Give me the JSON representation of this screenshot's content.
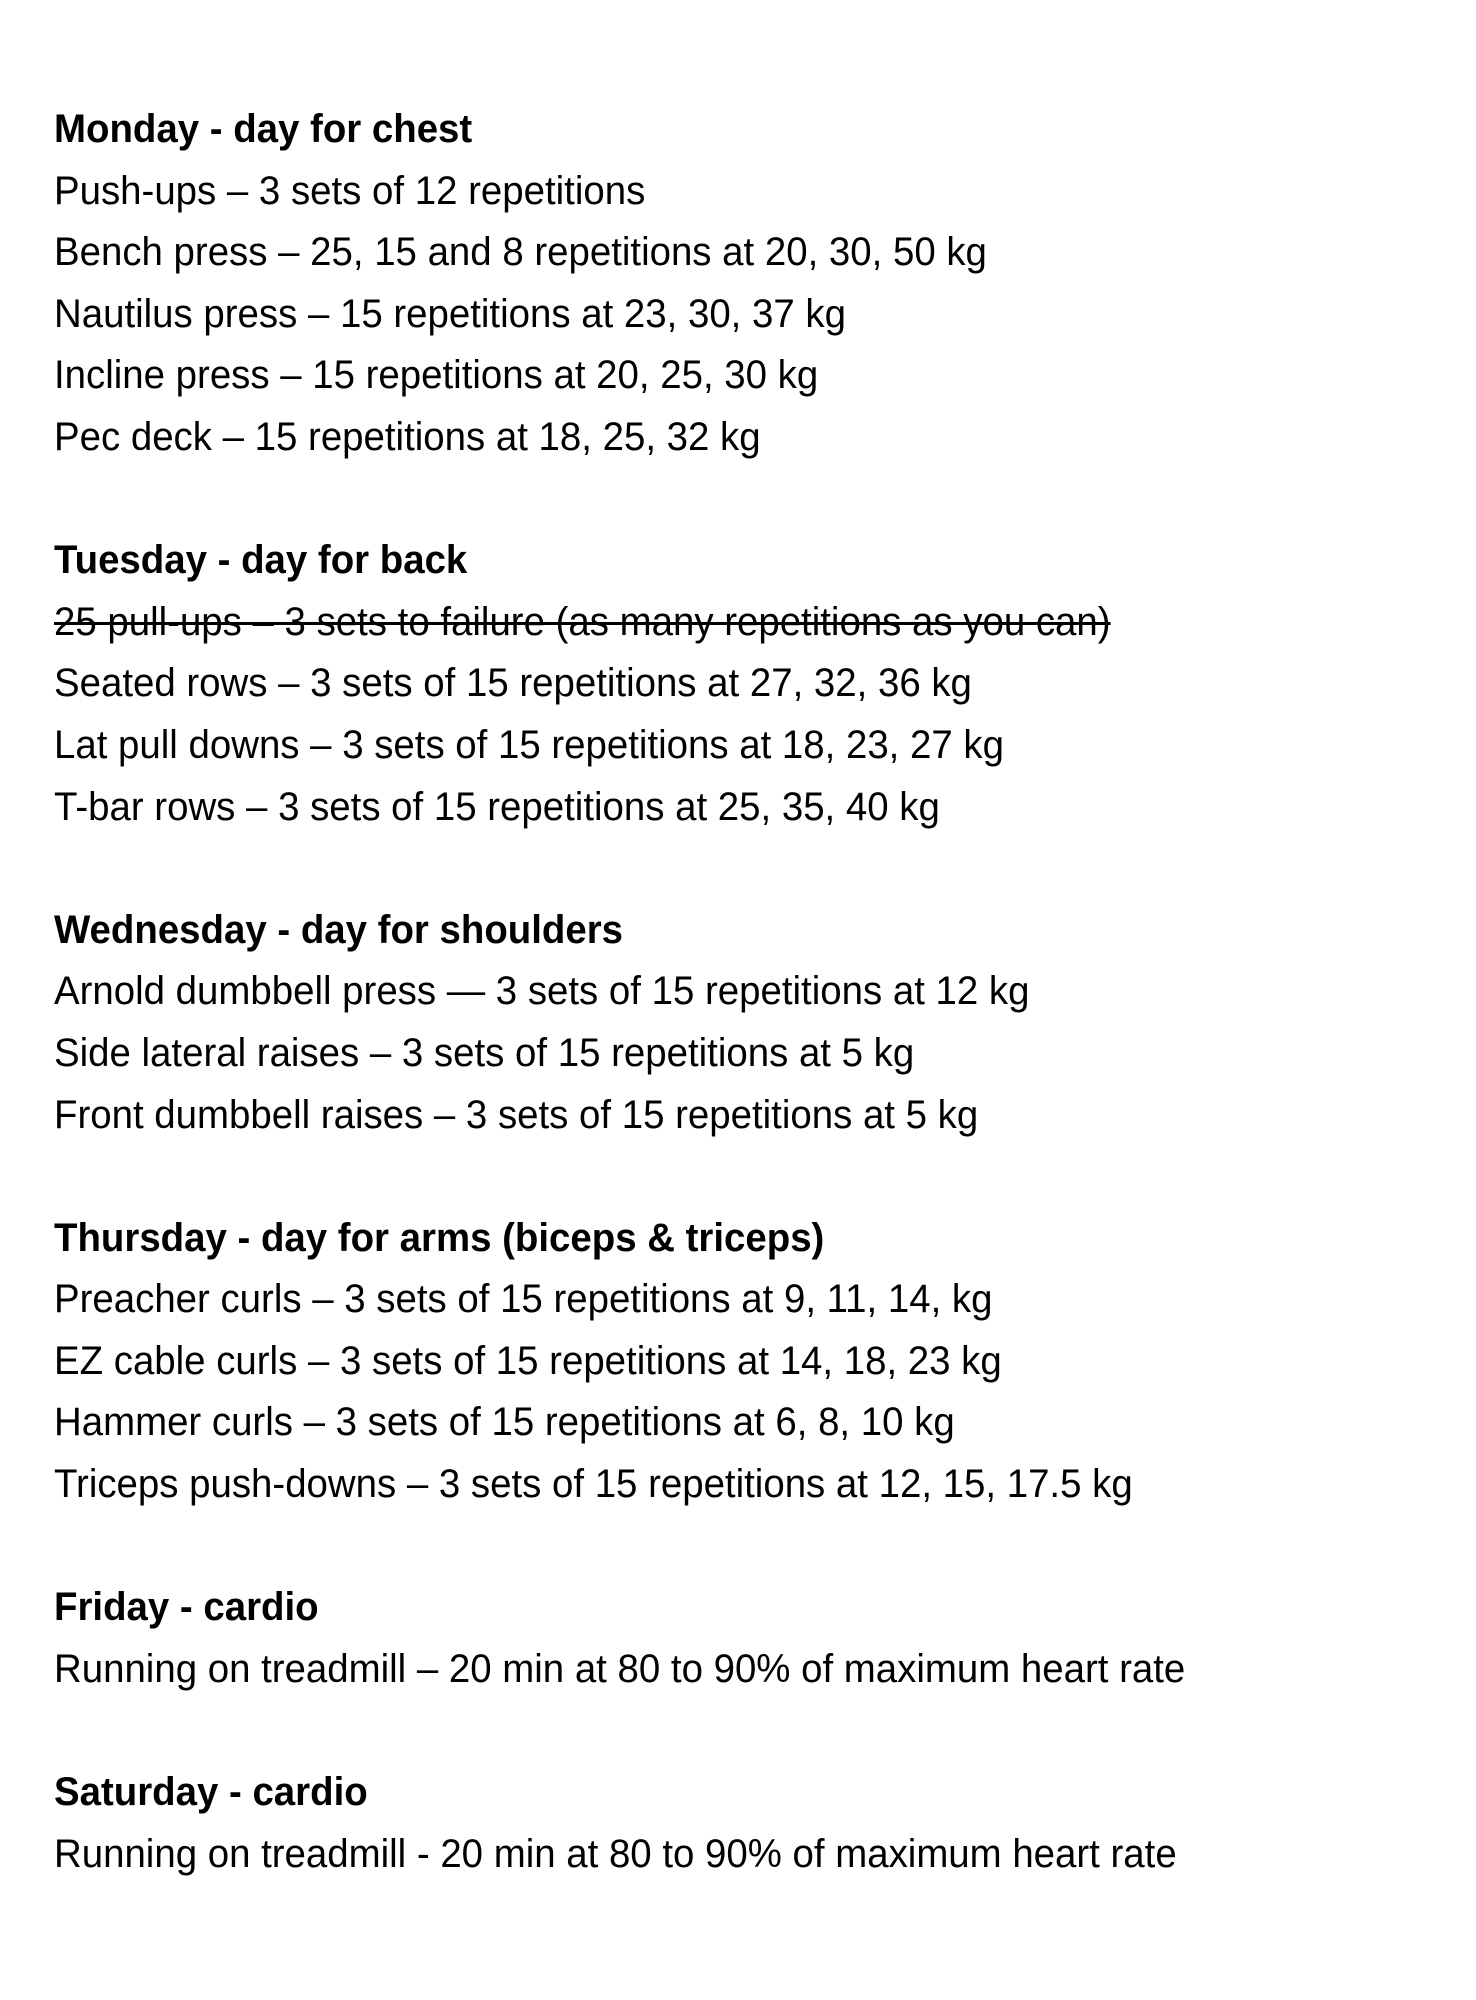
{
  "sections": [
    {
      "heading": "Monday - day for chest",
      "items": [
        {
          "text": "Push-ups – 3 sets of 12 repetitions",
          "struck": false
        },
        {
          "text": "Bench press – 25, 15 and 8 repetitions at 20, 30, 50 kg",
          "struck": false
        },
        {
          "text": "Nautilus press – 15 repetitions at 23, 30, 37 kg",
          "struck": false
        },
        {
          "text": "Incline press – 15 repetitions at 20, 25, 30 kg",
          "struck": false
        },
        {
          "text": "Pec deck – 15 repetitions at 18, 25, 32 kg",
          "struck": false
        }
      ]
    },
    {
      "heading": "Tuesday - day for back",
      "items": [
        {
          "text": "25 pull-ups – 3 sets to failure (as many repetitions as you can)",
          "struck": true
        },
        {
          "text": "Seated rows – 3 sets of 15 repetitions at 27, 32, 36 kg",
          "struck": false
        },
        {
          "text": "Lat pull downs – 3 sets of 15 repetitions at 18, 23, 27 kg",
          "struck": false
        },
        {
          "text": "T-bar rows – 3 sets of 15 repetitions at 25, 35, 40 kg",
          "struck": false
        }
      ]
    },
    {
      "heading": "Wednesday - day for shoulders",
      "items": [
        {
          "text": "Arnold dumbbell press — 3 sets of 15 repetitions at 12 kg",
          "struck": false
        },
        {
          "text": "Side lateral raises – 3 sets of 15 repetitions at 5 kg",
          "struck": false
        },
        {
          "text": "Front dumbbell raises – 3 sets of 15 repetitions at 5 kg",
          "struck": false
        }
      ]
    },
    {
      "heading": "Thursday - day for arms (biceps & triceps)",
      "items": [
        {
          "text": "Preacher curls – 3 sets of 15 repetitions at 9, 11, 14, kg",
          "struck": false
        },
        {
          "text": "EZ cable curls – 3 sets of 15 repetitions at 14, 18, 23 kg",
          "struck": false
        },
        {
          "text": "Hammer curls – 3 sets of 15 repetitions at 6, 8, 10 kg",
          "struck": false
        },
        {
          "text": "Triceps push-downs – 3 sets of 15 repetitions at 12, 15, 17.5 kg",
          "struck": false
        }
      ]
    },
    {
      "heading": "Friday - cardio",
      "items": [
        {
          "text": "Running on treadmill – 20 min at 80 to 90% of maximum heart rate",
          "struck": false
        }
      ]
    },
    {
      "heading": "Saturday - cardio",
      "items": [
        {
          "text": "Running on treadmill - 20 min at 80 to 90% of maximum heart rate",
          "struck": false
        }
      ]
    }
  ]
}
